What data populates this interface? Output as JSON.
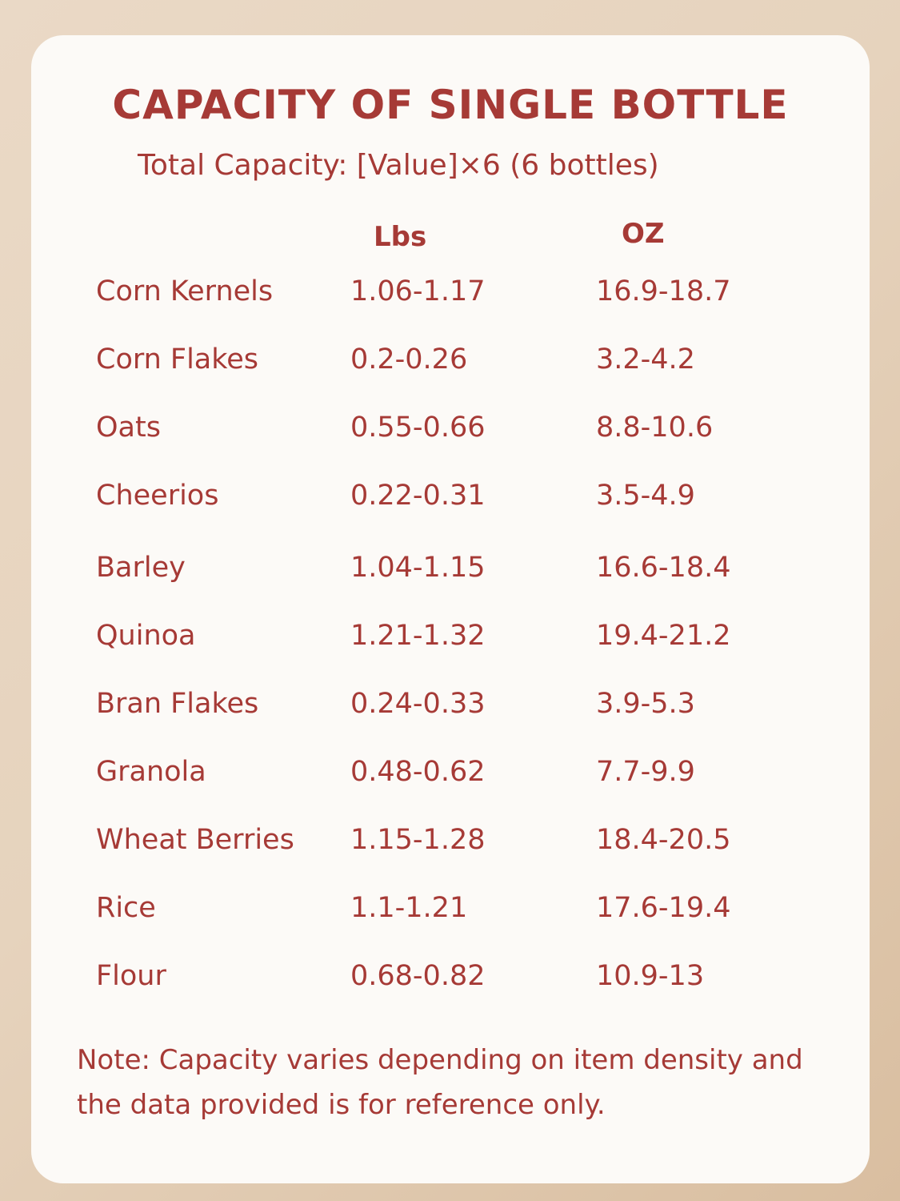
{
  "title": "CAPACITY OF SINGLE BOTTLE",
  "subtitle": "Total Capacity:  [Value]×6 (6 bottles)",
  "columns": {
    "lbs": "Lbs",
    "oz": "OZ"
  },
  "rows": [
    {
      "name": "Corn Kernels",
      "lbs": "1.06-1.17",
      "oz": "16.9-18.7"
    },
    {
      "name": "Corn Flakes",
      "lbs": "0.2-0.26",
      "oz": "3.2-4.2"
    },
    {
      "name": "Oats",
      "lbs": "0.55-0.66",
      "oz": "8.8-10.6"
    },
    {
      "name": "Cheerios",
      "lbs": "0.22-0.31",
      "oz": "3.5-4.9"
    },
    {
      "name": "Barley",
      "lbs": "1.04-1.15",
      "oz": "16.6-18.4"
    },
    {
      "name": "Quinoa",
      "lbs": "1.21-1.32",
      "oz": "19.4-21.2"
    },
    {
      "name": "Bran Flakes",
      "lbs": "0.24-0.33",
      "oz": "3.9-5.3"
    },
    {
      "name": "Granola",
      "lbs": "0.48-0.62",
      "oz": "7.7-9.9"
    },
    {
      "name": "Wheat Berries",
      "lbs": "1.15-1.28",
      "oz": "18.4-20.5"
    },
    {
      "name": "Rice",
      "lbs": "1.1-1.21",
      "oz": "17.6-19.4"
    },
    {
      "name": "Flour",
      "lbs": "0.68-0.82",
      "oz": "10.9-13"
    }
  ],
  "note": "Note: Capacity varies depending on item density and the data provided is for reference only.",
  "colors": {
    "text": "#a63a36",
    "card": "#fcfaf7",
    "background": "#e6d3bd"
  }
}
